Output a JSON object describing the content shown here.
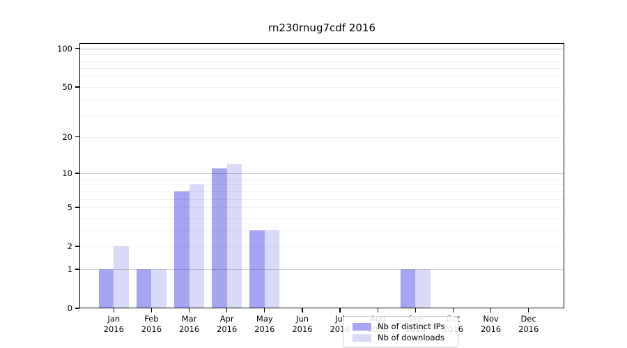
{
  "chart_data": {
    "type": "bar",
    "title": "rn230rnug7cdf 2016",
    "categories": [
      "Jan 2016",
      "Feb 2016",
      "Mar 2016",
      "Apr 2016",
      "May 2016",
      "Jun 2016",
      "Jul 2016",
      "Aug 2016",
      "Sep 2016",
      "Oct 2016",
      "Nov 2016",
      "Dec 2016"
    ],
    "series": [
      {
        "name": "Nb of distinct IPs",
        "color": "#a5a5f3",
        "values": [
          1,
          1,
          7,
          11,
          3,
          0,
          0,
          0,
          1,
          0,
          0,
          0
        ]
      },
      {
        "name": "Nb of downloads",
        "color": "#d9d9f8",
        "values": [
          2,
          1,
          8,
          12,
          3,
          0,
          0,
          0,
          1,
          0,
          0,
          0
        ]
      }
    ],
    "xlabel": "",
    "ylabel": "",
    "yscale": "log1p",
    "ylim": [
      0,
      110
    ],
    "yticks": [
      0,
      1,
      2,
      5,
      10,
      20,
      50,
      100
    ],
    "major_gridlines": [
      1,
      10,
      100
    ],
    "minor_gridlines": [
      2,
      3,
      4,
      5,
      6,
      7,
      8,
      9,
      20,
      30,
      40,
      50,
      60,
      70,
      80,
      90
    ],
    "grid": true,
    "legend_position": "lower center"
  }
}
